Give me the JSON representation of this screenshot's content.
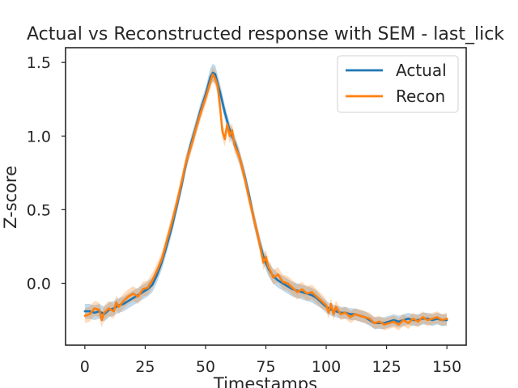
{
  "chart_data": {
    "type": "line",
    "title": "Actual vs Reconstructed response with SEM - last_lick",
    "xlabel": "Timestamps",
    "ylabel": "Z-score",
    "xlim": [
      -8,
      158
    ],
    "ylim": [
      -0.42,
      1.6
    ],
    "xticks": [
      0,
      25,
      50,
      75,
      100,
      125,
      150
    ],
    "yticks": [
      0.0,
      0.5,
      1.0,
      1.5
    ],
    "ytick_labels": [
      "0.0",
      "0.5",
      "1.0",
      "1.5"
    ],
    "grid": false,
    "legend_position": "top-right",
    "shaded_error": "SEM",
    "series": [
      {
        "name": "Actual",
        "color": "#1f77b4",
        "x": [
          0,
          2,
          4,
          6,
          8,
          10,
          12,
          14,
          16,
          18,
          20,
          22,
          24,
          26,
          28,
          30,
          32,
          34,
          36,
          38,
          40,
          42,
          44,
          46,
          48,
          50,
          52,
          53,
          54,
          56,
          58,
          60,
          62,
          64,
          66,
          68,
          70,
          72,
          74,
          76,
          78,
          80,
          82,
          84,
          86,
          88,
          90,
          92,
          94,
          96,
          98,
          100,
          102,
          104,
          106,
          108,
          110,
          112,
          114,
          116,
          118,
          120,
          122,
          124,
          126,
          128,
          130,
          132,
          134,
          136,
          138,
          140,
          142,
          144,
          146,
          148,
          150
        ],
        "y": [
          -0.19,
          -0.19,
          -0.2,
          -0.19,
          -0.21,
          -0.18,
          -0.17,
          -0.15,
          -0.14,
          -0.12,
          -0.1,
          -0.08,
          -0.06,
          -0.04,
          -0.01,
          0.06,
          0.15,
          0.26,
          0.38,
          0.52,
          0.66,
          0.82,
          0.95,
          1.06,
          1.18,
          1.28,
          1.4,
          1.43,
          1.42,
          1.3,
          1.16,
          1.04,
          0.96,
          0.86,
          0.74,
          0.6,
          0.44,
          0.3,
          0.18,
          0.1,
          0.05,
          0.02,
          0.0,
          -0.02,
          -0.04,
          -0.05,
          -0.06,
          -0.07,
          -0.08,
          -0.1,
          -0.13,
          -0.16,
          -0.18,
          -0.19,
          -0.2,
          -0.2,
          -0.21,
          -0.21,
          -0.22,
          -0.23,
          -0.25,
          -0.27,
          -0.27,
          -0.27,
          -0.26,
          -0.25,
          -0.26,
          -0.25,
          -0.24,
          -0.25,
          -0.25,
          -0.24,
          -0.24,
          -0.25,
          -0.24,
          -0.25,
          -0.25
        ],
        "sem": [
          0.05,
          0.05,
          0.05,
          0.05,
          0.05,
          0.05,
          0.05,
          0.05,
          0.05,
          0.05,
          0.05,
          0.05,
          0.05,
          0.05,
          0.05,
          0.05,
          0.05,
          0.05,
          0.05,
          0.05,
          0.05,
          0.05,
          0.05,
          0.05,
          0.05,
          0.05,
          0.06,
          0.06,
          0.06,
          0.06,
          0.05,
          0.05,
          0.05,
          0.05,
          0.05,
          0.05,
          0.05,
          0.05,
          0.05,
          0.05,
          0.05,
          0.05,
          0.05,
          0.05,
          0.05,
          0.05,
          0.05,
          0.05,
          0.05,
          0.05,
          0.04,
          0.04,
          0.04,
          0.04,
          0.04,
          0.04,
          0.04,
          0.04,
          0.04,
          0.04,
          0.04,
          0.04,
          0.04,
          0.04,
          0.04,
          0.04,
          0.04,
          0.04,
          0.04,
          0.04,
          0.04,
          0.04,
          0.04,
          0.04,
          0.04,
          0.04,
          0.04
        ]
      },
      {
        "name": "Recon",
        "color": "#ff7f0e",
        "x": [
          0,
          2,
          4,
          6,
          7,
          8,
          10,
          12,
          13,
          14,
          16,
          18,
          20,
          22,
          24,
          26,
          28,
          30,
          32,
          34,
          36,
          38,
          40,
          42,
          44,
          46,
          48,
          50,
          51,
          52,
          53,
          54,
          55,
          56,
          57,
          58,
          59,
          60,
          61,
          62,
          64,
          66,
          68,
          70,
          72,
          74,
          75,
          76,
          77,
          78,
          80,
          82,
          84,
          86,
          88,
          90,
          92,
          94,
          96,
          98,
          100,
          101,
          102,
          103,
          104,
          106,
          108,
          110,
          112,
          114,
          116,
          118,
          120,
          122,
          124,
          126,
          128,
          130,
          132,
          134,
          136,
          138,
          140,
          142,
          144,
          146,
          148,
          150
        ],
        "y": [
          -0.22,
          -0.21,
          -0.17,
          -0.18,
          -0.25,
          -0.2,
          -0.17,
          -0.19,
          -0.13,
          -0.16,
          -0.12,
          -0.09,
          -0.07,
          -0.09,
          -0.04,
          -0.03,
          0.02,
          0.09,
          0.17,
          0.29,
          0.41,
          0.54,
          0.68,
          0.83,
          0.93,
          1.05,
          1.16,
          1.26,
          1.31,
          1.37,
          1.42,
          1.39,
          1.34,
          1.2,
          1.03,
          0.98,
          1.08,
          1.0,
          1.04,
          0.94,
          0.86,
          0.73,
          0.58,
          0.44,
          0.3,
          0.14,
          0.18,
          0.11,
          0.08,
          0.04,
          0.06,
          0.01,
          0.0,
          -0.03,
          -0.06,
          -0.04,
          -0.07,
          -0.06,
          -0.09,
          -0.12,
          -0.15,
          -0.2,
          -0.14,
          -0.21,
          -0.16,
          -0.21,
          -0.2,
          -0.23,
          -0.21,
          -0.22,
          -0.23,
          -0.24,
          -0.27,
          -0.26,
          -0.28,
          -0.27,
          -0.26,
          -0.28,
          -0.25,
          -0.27,
          -0.24,
          -0.26,
          -0.23,
          -0.25,
          -0.24,
          -0.23,
          -0.25,
          -0.24
        ],
        "sem": [
          0.05,
          0.05,
          0.05,
          0.05,
          0.05,
          0.05,
          0.05,
          0.05,
          0.05,
          0.05,
          0.05,
          0.05,
          0.05,
          0.05,
          0.05,
          0.05,
          0.05,
          0.05,
          0.05,
          0.05,
          0.05,
          0.05,
          0.05,
          0.05,
          0.05,
          0.05,
          0.05,
          0.05,
          0.05,
          0.05,
          0.05,
          0.05,
          0.05,
          0.05,
          0.05,
          0.05,
          0.05,
          0.05,
          0.05,
          0.05,
          0.05,
          0.05,
          0.05,
          0.05,
          0.05,
          0.05,
          0.05,
          0.05,
          0.05,
          0.05,
          0.05,
          0.05,
          0.05,
          0.05,
          0.05,
          0.05,
          0.05,
          0.05,
          0.05,
          0.05,
          0.04,
          0.04,
          0.04,
          0.04,
          0.04,
          0.04,
          0.04,
          0.04,
          0.04,
          0.04,
          0.04,
          0.04,
          0.04,
          0.04,
          0.04,
          0.04,
          0.04,
          0.04,
          0.04,
          0.04,
          0.04,
          0.04,
          0.04,
          0.04,
          0.04,
          0.04,
          0.04,
          0.04
        ]
      }
    ]
  }
}
